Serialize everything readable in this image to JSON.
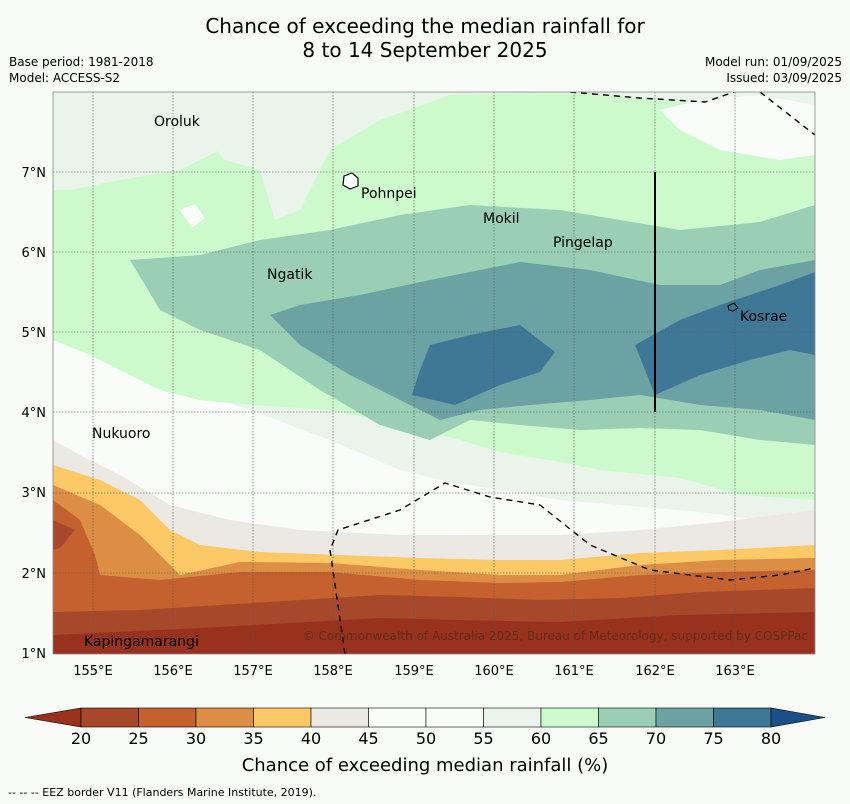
{
  "title": {
    "line1": "Chance of exceeding the median rainfall for",
    "line2": "8 to 14 September 2025"
  },
  "meta_left": {
    "base_period": "Base period: 1981-2018",
    "model": "Model: ACCESS-S2"
  },
  "meta_right": {
    "model_run": "Model run: 01/09/2025",
    "issued": "Issued: 03/09/2025"
  },
  "map": {
    "lon_labels": [
      "155°E",
      "156°E",
      "157°E",
      "158°E",
      "159°E",
      "160°E",
      "161°E",
      "162°E",
      "163°E"
    ],
    "lat_labels": [
      "1°N",
      "2°N",
      "3°N",
      "4°N",
      "5°N",
      "6°N",
      "7°N"
    ],
    "places": [
      {
        "name": "Oroluk"
      },
      {
        "name": "Pohnpei"
      },
      {
        "name": "Mokil"
      },
      {
        "name": "Pingelap"
      },
      {
        "name": "Ngatik"
      },
      {
        "name": "Kosrae"
      },
      {
        "name": "Nukuoro"
      },
      {
        "name": "Kapingamarangi"
      }
    ],
    "copyright": "© Commonwealth of Australia 2025, Bureau of Meteorology, supported by COSPPac"
  },
  "colorbar": {
    "ticks": [
      "20",
      "25",
      "30",
      "35",
      "40",
      "45",
      "50",
      "55",
      "60",
      "65",
      "70",
      "75",
      "80"
    ],
    "colors": [
      "#a8482a",
      "#c4612f",
      "#dc8e45",
      "#fdc866",
      "#ece9e4",
      "#fafcfa",
      "#fafcfa",
      "#eaf4ea",
      "#cdfacd",
      "#9bcfb5",
      "#6ca2a4",
      "#3e7896",
      "#1a5087"
    ],
    "title": "Chance of exceeding median rainfall (%)"
  },
  "footer": "--  --  -- EEZ border V11 (Flanders Marine Institute, 2019)."
}
